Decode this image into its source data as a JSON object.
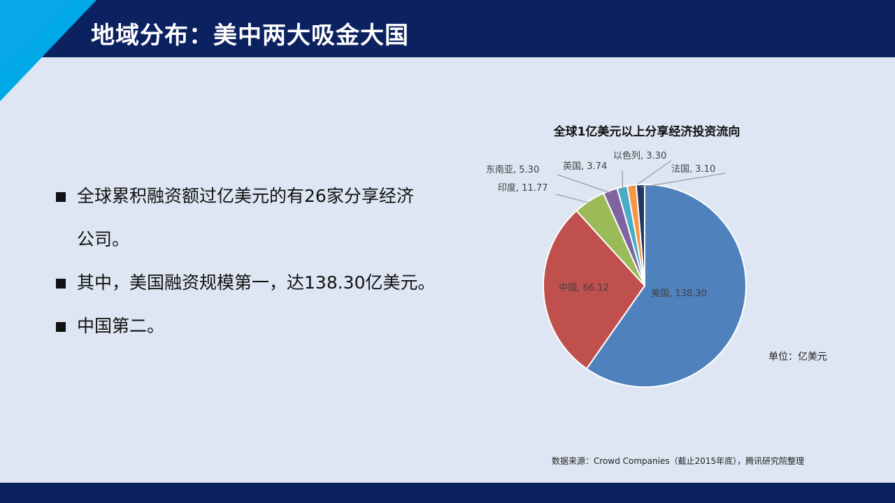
{
  "header": {
    "title": "地域分布：美中两大吸金大国"
  },
  "bullets": [
    "全球累积融资额过亿美元的有26家分享经济",
    "公司。",
    "其中，美国融资规模第一，达138.30亿美元。",
    "中国第二。"
  ],
  "chart_data": {
    "type": "pie",
    "title": "全球1亿美元以上分享经济投资流向",
    "unit_note": "单位：亿美元",
    "slices": [
      {
        "label": "美国",
        "value": 138.3,
        "display": "138.30",
        "color": "#4f81bd"
      },
      {
        "label": "中国",
        "value": 66.12,
        "display": "66.12",
        "color": "#c0504d"
      },
      {
        "label": "印度",
        "value": 11.77,
        "display": "11.77",
        "color": "#9bbb59"
      },
      {
        "label": "东南亚",
        "value": 5.3,
        "display": "5.30",
        "color": "#8064a2"
      },
      {
        "label": "英国",
        "value": 3.74,
        "display": "3.74",
        "color": "#4bacc6"
      },
      {
        "label": "以色列",
        "value": 3.3,
        "display": "3.30",
        "color": "#f79646"
      },
      {
        "label": "法国",
        "value": 3.1,
        "display": "3.10",
        "color": "#1f3864"
      }
    ],
    "start_angle": "12 o'clock",
    "direction": "clockwise"
  },
  "footer": {
    "source": "数据来源：Crowd  Companies（截止2015年底），腾讯研究院整理"
  },
  "colors": {
    "header_bg": "#0b2160",
    "accent": "#00a8e8",
    "page_bg": "#dde6f2"
  }
}
